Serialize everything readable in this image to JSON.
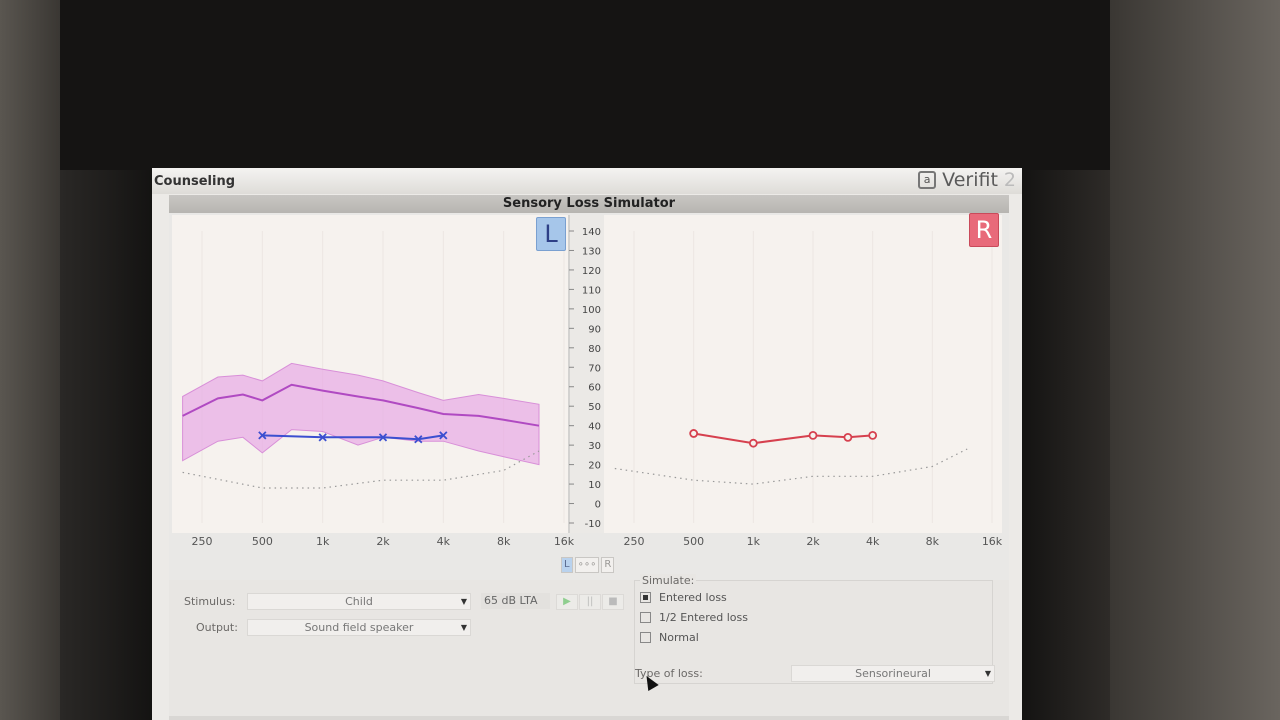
{
  "window": {
    "title": "Counseling",
    "brand": "Verifit",
    "brand_version": "2"
  },
  "simulator": {
    "title": "Sensory Loss Simulator",
    "left_ear_label": "L",
    "right_ear_label": "R",
    "ear_toggle": [
      "L",
      "∘∘∘",
      "R"
    ]
  },
  "axes": {
    "x_ticks": [
      "250",
      "500",
      "1k",
      "2k",
      "4k",
      "8k",
      "16k"
    ],
    "y_ticks": [
      "140",
      "130",
      "120",
      "110",
      "100",
      "90",
      "80",
      "70",
      "60",
      "50",
      "40",
      "30",
      "20",
      "10",
      "0",
      "-10"
    ]
  },
  "chart_data": [
    {
      "type": "line",
      "ear": "left",
      "x_scale": "log",
      "xlim": [
        200,
        16000
      ],
      "ylim": [
        -10,
        145
      ],
      "series": [
        {
          "color": "#3b4fd0",
          "marker": "x",
          "x": [
            500,
            1000,
            2000,
            3000,
            4000
          ],
          "y": [
            35,
            34,
            34,
            33,
            35
          ]
        },
        {
          "color": "#b04ac2",
          "x": [
            200,
            300,
            400,
            500,
            700,
            1000,
            1500,
            2000,
            3000,
            4000,
            6000,
            8000,
            12000
          ],
          "y": [
            45,
            54,
            56,
            53,
            61,
            58,
            55,
            53,
            49,
            46,
            45,
            43,
            40
          ]
        },
        {
          "band": true,
          "color": "#e8a9e6",
          "x": [
            200,
            300,
            400,
            500,
            700,
            1000,
            1500,
            2000,
            3000,
            4000,
            6000,
            8000,
            12000
          ],
          "upper": [
            55,
            65,
            66,
            63,
            72,
            69,
            66,
            63,
            57,
            53,
            56,
            54,
            51
          ],
          "lower": [
            22,
            32,
            34,
            26,
            38,
            37,
            30,
            34,
            32,
            32,
            27,
            24,
            20
          ]
        },
        {
          "color": "#999999",
          "dotted": true,
          "x": [
            200,
            500,
            1000,
            2000,
            4000,
            8000,
            12000
          ],
          "y": [
            16,
            8,
            8,
            12,
            12,
            17,
            27
          ]
        }
      ]
    },
    {
      "type": "line",
      "ear": "right",
      "x_scale": "log",
      "xlim": [
        200,
        16000
      ],
      "ylim": [
        -10,
        145
      ],
      "series": [
        {
          "color": "#d6404e",
          "marker": "o",
          "x": [
            500,
            1000,
            2000,
            3000,
            4000
          ],
          "y": [
            36,
            31,
            35,
            34,
            35
          ]
        },
        {
          "color": "#999999",
          "dotted": true,
          "x": [
            200,
            500,
            1000,
            2000,
            4000,
            8000,
            12000
          ],
          "y": [
            18,
            12,
            10,
            14,
            14,
            19,
            28
          ]
        }
      ]
    }
  ],
  "controls": {
    "stimulus_label": "Stimulus:",
    "stimulus_value": "Child",
    "output_label": "Output:",
    "output_value": "Sound field speaker",
    "level_value": "65 dB LTA",
    "play_icon": "▶",
    "pause_icon": "||",
    "stop_icon": "■",
    "simulate_label": "Simulate:",
    "simulate_options": [
      "Entered loss",
      "1/2 Entered loss",
      "Normal"
    ],
    "selected_option": 0,
    "type_of_loss_label": "Type of loss:",
    "type_of_loss_value": "Sensorineural"
  }
}
